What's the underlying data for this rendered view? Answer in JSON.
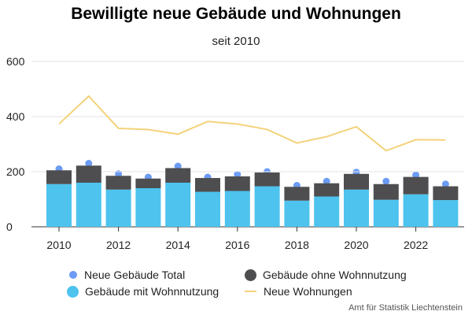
{
  "chart_data": {
    "type": "bar",
    "title": "Bewilligte neue Gebäude und Wohnungen",
    "subtitle": "seit 2010",
    "source": "Amt für Statistik Liechtenstein",
    "ylim": [
      0,
      600
    ],
    "yticks": [
      "0",
      "200",
      "400",
      "600"
    ],
    "xticks": [
      "2010",
      "2012",
      "2014",
      "2016",
      "2018",
      "2020",
      "2022"
    ],
    "grid": true,
    "legend_position": "bottom",
    "categories": [
      "2010",
      "2011",
      "2012",
      "2013",
      "2014",
      "2015",
      "2016",
      "2017",
      "2018",
      "2019",
      "2020",
      "2021",
      "2022",
      "2023"
    ],
    "series": [
      {
        "name": "Gebäude mit Wohnnutzung",
        "type": "stacked-bar",
        "color": "#4DC3EE",
        "values": [
          155,
          160,
          135,
          140,
          160,
          127,
          130,
          147,
          95,
          110,
          135,
          98,
          118,
          97
        ]
      },
      {
        "name": "Gebäude ohne Wohnnutzung",
        "type": "stacked-bar",
        "color": "#4E4E50",
        "values": [
          50,
          62,
          50,
          35,
          53,
          50,
          53,
          50,
          50,
          48,
          57,
          57,
          63,
          50
        ]
      },
      {
        "name": "Neue Gebäude Total",
        "type": "point",
        "color": "#6B9BF4",
        "values": [
          210,
          230,
          192,
          180,
          220,
          180,
          190,
          200,
          150,
          165,
          198,
          165,
          188,
          155
        ]
      },
      {
        "name": "Neue Wohnungen",
        "type": "line",
        "color": "#F3D27A",
        "values": [
          373,
          474,
          357,
          353,
          336,
          382,
          373,
          353,
          304,
          327,
          363,
          276,
          316,
          315
        ]
      }
    ]
  }
}
